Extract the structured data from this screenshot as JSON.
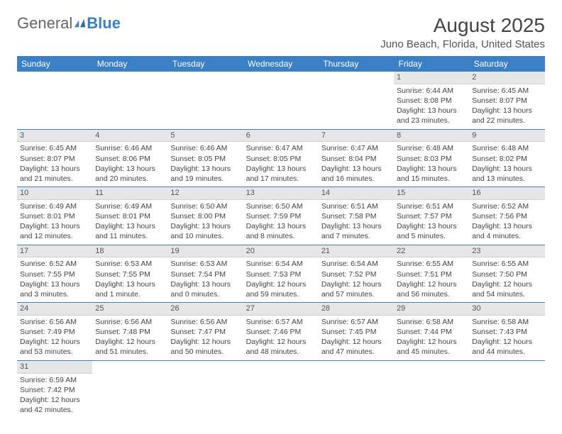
{
  "logo": {
    "part1": "General",
    "part2": "Blue"
  },
  "title": "August 2025",
  "location": "Juno Beach, Florida, United States",
  "colors": {
    "header_bg": "#3b7fc4",
    "header_text": "#ffffff",
    "daynum_bg": "#e6e6e6",
    "border": "#3b7fc4",
    "text": "#444444",
    "background": "#ffffff"
  },
  "weekdays": [
    "Sunday",
    "Monday",
    "Tuesday",
    "Wednesday",
    "Thursday",
    "Friday",
    "Saturday"
  ],
  "weeks": [
    [
      null,
      null,
      null,
      null,
      null,
      {
        "n": "1",
        "sr": "Sunrise: 6:44 AM",
        "ss": "Sunset: 8:08 PM",
        "dl": "Daylight: 13 hours and 23 minutes."
      },
      {
        "n": "2",
        "sr": "Sunrise: 6:45 AM",
        "ss": "Sunset: 8:07 PM",
        "dl": "Daylight: 13 hours and 22 minutes."
      }
    ],
    [
      {
        "n": "3",
        "sr": "Sunrise: 6:45 AM",
        "ss": "Sunset: 8:07 PM",
        "dl": "Daylight: 13 hours and 21 minutes."
      },
      {
        "n": "4",
        "sr": "Sunrise: 6:46 AM",
        "ss": "Sunset: 8:06 PM",
        "dl": "Daylight: 13 hours and 20 minutes."
      },
      {
        "n": "5",
        "sr": "Sunrise: 6:46 AM",
        "ss": "Sunset: 8:05 PM",
        "dl": "Daylight: 13 hours and 19 minutes."
      },
      {
        "n": "6",
        "sr": "Sunrise: 6:47 AM",
        "ss": "Sunset: 8:05 PM",
        "dl": "Daylight: 13 hours and 17 minutes."
      },
      {
        "n": "7",
        "sr": "Sunrise: 6:47 AM",
        "ss": "Sunset: 8:04 PM",
        "dl": "Daylight: 13 hours and 16 minutes."
      },
      {
        "n": "8",
        "sr": "Sunrise: 6:48 AM",
        "ss": "Sunset: 8:03 PM",
        "dl": "Daylight: 13 hours and 15 minutes."
      },
      {
        "n": "9",
        "sr": "Sunrise: 6:48 AM",
        "ss": "Sunset: 8:02 PM",
        "dl": "Daylight: 13 hours and 13 minutes."
      }
    ],
    [
      {
        "n": "10",
        "sr": "Sunrise: 6:49 AM",
        "ss": "Sunset: 8:01 PM",
        "dl": "Daylight: 13 hours and 12 minutes."
      },
      {
        "n": "11",
        "sr": "Sunrise: 6:49 AM",
        "ss": "Sunset: 8:01 PM",
        "dl": "Daylight: 13 hours and 11 minutes."
      },
      {
        "n": "12",
        "sr": "Sunrise: 6:50 AM",
        "ss": "Sunset: 8:00 PM",
        "dl": "Daylight: 13 hours and 10 minutes."
      },
      {
        "n": "13",
        "sr": "Sunrise: 6:50 AM",
        "ss": "Sunset: 7:59 PM",
        "dl": "Daylight: 13 hours and 8 minutes."
      },
      {
        "n": "14",
        "sr": "Sunrise: 6:51 AM",
        "ss": "Sunset: 7:58 PM",
        "dl": "Daylight: 13 hours and 7 minutes."
      },
      {
        "n": "15",
        "sr": "Sunrise: 6:51 AM",
        "ss": "Sunset: 7:57 PM",
        "dl": "Daylight: 13 hours and 5 minutes."
      },
      {
        "n": "16",
        "sr": "Sunrise: 6:52 AM",
        "ss": "Sunset: 7:56 PM",
        "dl": "Daylight: 13 hours and 4 minutes."
      }
    ],
    [
      {
        "n": "17",
        "sr": "Sunrise: 6:52 AM",
        "ss": "Sunset: 7:55 PM",
        "dl": "Daylight: 13 hours and 3 minutes."
      },
      {
        "n": "18",
        "sr": "Sunrise: 6:53 AM",
        "ss": "Sunset: 7:55 PM",
        "dl": "Daylight: 13 hours and 1 minute."
      },
      {
        "n": "19",
        "sr": "Sunrise: 6:53 AM",
        "ss": "Sunset: 7:54 PM",
        "dl": "Daylight: 13 hours and 0 minutes."
      },
      {
        "n": "20",
        "sr": "Sunrise: 6:54 AM",
        "ss": "Sunset: 7:53 PM",
        "dl": "Daylight: 12 hours and 59 minutes."
      },
      {
        "n": "21",
        "sr": "Sunrise: 6:54 AM",
        "ss": "Sunset: 7:52 PM",
        "dl": "Daylight: 12 hours and 57 minutes."
      },
      {
        "n": "22",
        "sr": "Sunrise: 6:55 AM",
        "ss": "Sunset: 7:51 PM",
        "dl": "Daylight: 12 hours and 56 minutes."
      },
      {
        "n": "23",
        "sr": "Sunrise: 6:55 AM",
        "ss": "Sunset: 7:50 PM",
        "dl": "Daylight: 12 hours and 54 minutes."
      }
    ],
    [
      {
        "n": "24",
        "sr": "Sunrise: 6:56 AM",
        "ss": "Sunset: 7:49 PM",
        "dl": "Daylight: 12 hours and 53 minutes."
      },
      {
        "n": "25",
        "sr": "Sunrise: 6:56 AM",
        "ss": "Sunset: 7:48 PM",
        "dl": "Daylight: 12 hours and 51 minutes."
      },
      {
        "n": "26",
        "sr": "Sunrise: 6:56 AM",
        "ss": "Sunset: 7:47 PM",
        "dl": "Daylight: 12 hours and 50 minutes."
      },
      {
        "n": "27",
        "sr": "Sunrise: 6:57 AM",
        "ss": "Sunset: 7:46 PM",
        "dl": "Daylight: 12 hours and 48 minutes."
      },
      {
        "n": "28",
        "sr": "Sunrise: 6:57 AM",
        "ss": "Sunset: 7:45 PM",
        "dl": "Daylight: 12 hours and 47 minutes."
      },
      {
        "n": "29",
        "sr": "Sunrise: 6:58 AM",
        "ss": "Sunset: 7:44 PM",
        "dl": "Daylight: 12 hours and 45 minutes."
      },
      {
        "n": "30",
        "sr": "Sunrise: 6:58 AM",
        "ss": "Sunset: 7:43 PM",
        "dl": "Daylight: 12 hours and 44 minutes."
      }
    ],
    [
      {
        "n": "31",
        "sr": "Sunrise: 6:59 AM",
        "ss": "Sunset: 7:42 PM",
        "dl": "Daylight: 12 hours and 42 minutes."
      },
      null,
      null,
      null,
      null,
      null,
      null
    ]
  ]
}
